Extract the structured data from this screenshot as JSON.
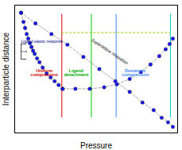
{
  "chart_data": {
    "type": "line",
    "xlabel": "Pressure",
    "ylabel": "Interparticle distance",
    "xlim": [
      0.0,
      1.02
    ],
    "ylim": [
      0.18,
      1.02
    ],
    "tick_labels": false,
    "grid": false,
    "marker": "o",
    "line_style": "dashed",
    "color": "#1a1aff",
    "series": [
      {
        "x": [
          0.04,
          0.13,
          0.23,
          0.33,
          0.43,
          0.53,
          0.63,
          0.72,
          0.8,
          0.87,
          0.92,
          0.96,
          0.99
        ],
        "values": [
          0.97,
          0.9,
          0.83,
          0.76,
          0.68,
          0.6,
          0.52,
          0.45,
          0.38,
          0.33,
          0.28,
          0.25,
          0.22
        ]
      },
      {
        "x": [
          0.04,
          0.055,
          0.065,
          0.075,
          0.085,
          0.095,
          0.105,
          0.115,
          0.125,
          0.14,
          0.155,
          0.175,
          0.2,
          0.225,
          0.25,
          0.275,
          0.3
        ],
        "values": [
          0.97,
          0.91,
          0.87,
          0.83,
          0.8,
          0.77,
          0.745,
          0.72,
          0.7,
          0.67,
          0.645,
          0.61,
          0.57,
          0.545,
          0.52,
          0.495,
          0.47
        ]
      },
      {
        "x": [
          0.3,
          0.38,
          0.47,
          0.56,
          0.64,
          0.72,
          0.79,
          0.85,
          0.905,
          0.945,
          0.97,
          0.99
        ],
        "values": [
          0.47,
          0.47,
          0.47,
          0.48,
          0.5,
          0.535,
          0.58,
          0.63,
          0.685,
          0.73,
          0.765,
          0.8
        ]
      }
    ],
    "vlines": [
      {
        "x": 0.295,
        "y1": 0.28,
        "y2": 0.96,
        "color": "#dd0000"
      },
      {
        "x": 0.48,
        "y1": 0.28,
        "y2": 0.96,
        "color": "#00cc00"
      },
      {
        "x": 0.635,
        "y1": 0.28,
        "y2": 0.96,
        "color": "#4488ff"
      },
      {
        "x": 0.975,
        "y1": 0.28,
        "y2": 0.96,
        "color": "#00cccc"
      }
    ],
    "hline": {
      "y": 0.84,
      "xmin": 0.295,
      "xmax": 0.975,
      "color": "#99cc00"
    },
    "curve_label": {
      "text": "Superlattice relaxation",
      "x": 0.595,
      "y": 0.715,
      "color": "#000000"
    },
    "range_label": {
      "text": "Ligand elastic response",
      "x": 0.04,
      "y": 0.78,
      "color": "#000088"
    },
    "bracket": {
      "x_left": 0.04,
      "x_right": 0.075,
      "y_top": 0.765,
      "y_bot": 0.665
    },
    "region_labels": [
      {
        "text": "Uniform\ncompression",
        "x": 0.185,
        "y": 0.575,
        "color": "#cc0000"
      },
      {
        "text": "Ligand\ndetachment",
        "x": 0.385,
        "y": 0.575,
        "color": "#00aa00"
      },
      {
        "text": "Deviatoric\ncompression",
        "x": 0.755,
        "y": 0.575,
        "color": "#4488ff"
      }
    ]
  }
}
